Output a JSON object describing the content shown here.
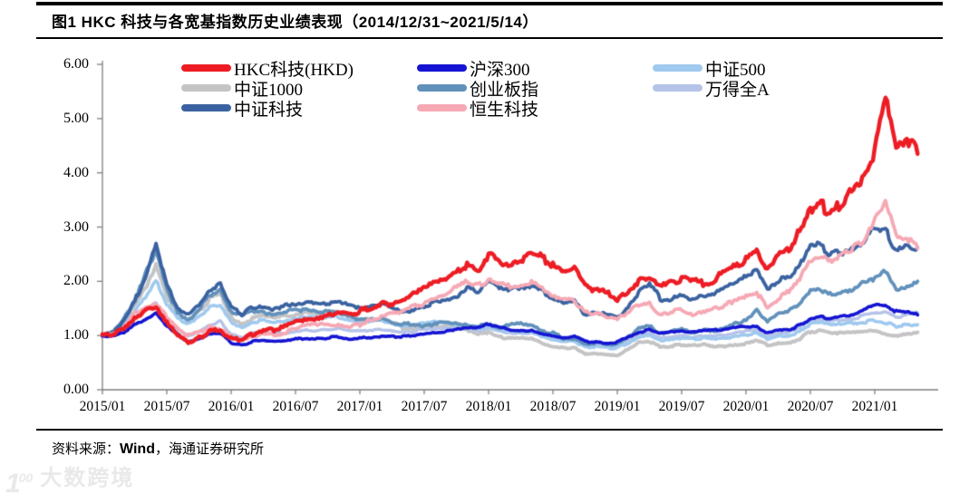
{
  "header": {
    "title": "图1  HKC 科技与各宽基指数历史业绩表现（2014/12/31~2021/5/14）"
  },
  "footer": {
    "source_label": "资料来源：",
    "source_wind": "Wind",
    "source_rest": "，海通证券研究所"
  },
  "watermark": {
    "mark_digit": "1",
    "mark_sup": "00",
    "text": "大数跨境"
  },
  "chart_data": {
    "type": "line",
    "title": "HKC 科技与各宽基指数历史业绩表现",
    "period": "2014/12/31~2021/5/14",
    "xlabel": "",
    "ylabel": "",
    "ylim": [
      0,
      6
    ],
    "grid": false,
    "legend_position": "top-inside",
    "y_tick_labels": [
      "0.00",
      "1.00",
      "2.00",
      "3.00",
      "4.00",
      "5.00",
      "6.00"
    ],
    "x_tick_labels": [
      "2015/01",
      "2015/07",
      "2016/01",
      "2016/07",
      "2017/01",
      "2017/07",
      "2018/01",
      "2018/07",
      "2019/01",
      "2019/07",
      "2020/01",
      "2020/07",
      "2021/01"
    ],
    "x_months": {
      "start": "2015/01",
      "end": "2021/05",
      "count": 77,
      "note": "monthly values, all indices normalized to 1.00 at 2014/12/31"
    },
    "series": [
      {
        "name": "HKC科技(HKD)",
        "color": "#ed1c24",
        "values": [
          1.0,
          1.02,
          1.12,
          1.3,
          1.45,
          1.5,
          1.22,
          1.0,
          0.88,
          0.95,
          1.08,
          1.1,
          0.94,
          0.92,
          1.03,
          1.1,
          1.1,
          1.18,
          1.26,
          1.33,
          1.33,
          1.37,
          1.44,
          1.4,
          1.44,
          1.52,
          1.58,
          1.6,
          1.66,
          1.78,
          1.88,
          1.98,
          2.05,
          2.18,
          2.32,
          2.22,
          2.48,
          2.4,
          2.32,
          2.38,
          2.5,
          2.45,
          2.28,
          2.18,
          2.22,
          1.92,
          1.85,
          1.78,
          1.62,
          1.85,
          2.0,
          2.1,
          1.88,
          1.95,
          2.05,
          1.98,
          1.95,
          2.05,
          2.15,
          2.28,
          2.4,
          2.55,
          2.18,
          2.45,
          2.62,
          2.9,
          3.35,
          3.4,
          3.25,
          3.5,
          3.7,
          3.95,
          4.4,
          5.4,
          4.55,
          4.7,
          4.35
        ]
      },
      {
        "name": "沪深300",
        "color": "#1414d2",
        "values": [
          1.0,
          0.99,
          1.05,
          1.22,
          1.3,
          1.42,
          1.18,
          1.02,
          0.88,
          0.93,
          1.02,
          1.05,
          0.86,
          0.82,
          0.89,
          0.91,
          0.89,
          0.9,
          0.93,
          0.95,
          0.94,
          0.96,
          0.98,
          0.94,
          0.95,
          0.97,
          0.98,
          0.98,
          0.98,
          1.01,
          1.04,
          1.06,
          1.07,
          1.11,
          1.14,
          1.14,
          1.22,
          1.15,
          1.1,
          1.08,
          1.1,
          1.04,
          0.99,
          0.96,
          0.99,
          0.89,
          0.88,
          0.85,
          0.88,
          0.98,
          1.06,
          1.1,
          1.03,
          1.06,
          1.09,
          1.06,
          1.09,
          1.1,
          1.11,
          1.15,
          1.17,
          1.16,
          1.04,
          1.09,
          1.11,
          1.19,
          1.31,
          1.34,
          1.31,
          1.34,
          1.39,
          1.47,
          1.55,
          1.58,
          1.44,
          1.42,
          1.38
        ]
      },
      {
        "name": "中证500",
        "color": "#9fc9ee",
        "values": [
          1.0,
          1.03,
          1.18,
          1.45,
          1.7,
          2.02,
          1.58,
          1.32,
          1.22,
          1.33,
          1.52,
          1.58,
          1.26,
          1.14,
          1.25,
          1.28,
          1.24,
          1.27,
          1.3,
          1.33,
          1.32,
          1.33,
          1.35,
          1.27,
          1.24,
          1.26,
          1.28,
          1.24,
          1.17,
          1.19,
          1.22,
          1.24,
          1.23,
          1.21,
          1.19,
          1.14,
          1.17,
          1.1,
          1.08,
          1.05,
          1.06,
          0.99,
          0.92,
          0.89,
          0.91,
          0.78,
          0.8,
          0.77,
          0.77,
          0.87,
          0.98,
          1.0,
          0.91,
          0.93,
          0.95,
          0.93,
          0.95,
          0.94,
          0.94,
          0.98,
          1.0,
          1.05,
          0.93,
          0.98,
          1.0,
          1.07,
          1.21,
          1.24,
          1.19,
          1.21,
          1.23,
          1.25,
          1.27,
          1.24,
          1.17,
          1.19,
          1.2
        ]
      },
      {
        "name": "中证1000",
        "color": "#c4c4c6",
        "values": [
          1.0,
          1.05,
          1.25,
          1.55,
          1.85,
          2.3,
          1.72,
          1.4,
          1.28,
          1.43,
          1.68,
          1.76,
          1.36,
          1.2,
          1.33,
          1.37,
          1.33,
          1.36,
          1.39,
          1.42,
          1.41,
          1.42,
          1.44,
          1.33,
          1.29,
          1.3,
          1.31,
          1.24,
          1.14,
          1.14,
          1.17,
          1.19,
          1.17,
          1.14,
          1.09,
          1.04,
          1.05,
          0.97,
          0.97,
          0.94,
          0.95,
          0.87,
          0.79,
          0.77,
          0.79,
          0.65,
          0.67,
          0.65,
          0.64,
          0.74,
          0.87,
          0.89,
          0.79,
          0.81,
          0.83,
          0.81,
          0.83,
          0.81,
          0.8,
          0.84,
          0.86,
          0.92,
          0.82,
          0.86,
          0.88,
          0.94,
          1.07,
          1.09,
          1.04,
          1.04,
          1.05,
          1.06,
          1.08,
          1.04,
          0.99,
          1.03,
          1.06
        ]
      },
      {
        "name": "创业板指",
        "color": "#6191bb",
        "values": [
          1.0,
          1.08,
          1.32,
          1.65,
          2.15,
          2.6,
          1.9,
          1.42,
          1.3,
          1.48,
          1.75,
          1.85,
          1.44,
          1.36,
          1.45,
          1.42,
          1.38,
          1.44,
          1.47,
          1.45,
          1.44,
          1.44,
          1.42,
          1.33,
          1.28,
          1.3,
          1.32,
          1.25,
          1.2,
          1.22,
          1.16,
          1.24,
          1.25,
          1.22,
          1.2,
          1.17,
          1.21,
          1.14,
          1.24,
          1.21,
          1.19,
          1.09,
          1.04,
          0.94,
          0.95,
          0.84,
          0.87,
          0.85,
          0.84,
          0.95,
          1.14,
          1.17,
          1.04,
          1.07,
          1.1,
          1.07,
          1.11,
          1.1,
          1.12,
          1.22,
          1.3,
          1.45,
          1.28,
          1.4,
          1.45,
          1.6,
          1.85,
          1.8,
          1.74,
          1.79,
          1.84,
          2.0,
          2.05,
          2.16,
          1.82,
          1.9,
          2.0
        ]
      },
      {
        "name": "万得全A",
        "color": "#b5c3e8",
        "values": [
          1.0,
          1.02,
          1.12,
          1.32,
          1.5,
          1.6,
          1.33,
          1.13,
          1.0,
          1.07,
          1.2,
          1.26,
          1.02,
          0.96,
          1.04,
          1.06,
          1.04,
          1.05,
          1.08,
          1.1,
          1.09,
          1.11,
          1.14,
          1.09,
          1.08,
          1.1,
          1.11,
          1.09,
          1.05,
          1.08,
          1.11,
          1.14,
          1.13,
          1.14,
          1.13,
          1.1,
          1.13,
          1.08,
          1.06,
          1.04,
          1.05,
          0.99,
          0.93,
          0.91,
          0.93,
          0.82,
          0.83,
          0.81,
          0.81,
          0.91,
          1.01,
          1.04,
          0.95,
          0.98,
          1.0,
          0.98,
          1.0,
          1.0,
          1.01,
          1.06,
          1.08,
          1.11,
          0.99,
          1.04,
          1.06,
          1.14,
          1.29,
          1.31,
          1.27,
          1.29,
          1.32,
          1.37,
          1.41,
          1.44,
          1.34,
          1.37,
          1.42
        ]
      },
      {
        "name": "中证科技",
        "color": "#3a62a0",
        "values": [
          1.0,
          1.06,
          1.28,
          1.62,
          2.12,
          2.68,
          1.98,
          1.5,
          1.38,
          1.55,
          1.85,
          1.95,
          1.52,
          1.4,
          1.52,
          1.55,
          1.5,
          1.54,
          1.58,
          1.62,
          1.6,
          1.6,
          1.64,
          1.54,
          1.5,
          1.54,
          1.59,
          1.51,
          1.44,
          1.49,
          1.54,
          1.62,
          1.68,
          1.74,
          1.88,
          1.78,
          1.98,
          1.88,
          1.84,
          1.89,
          1.94,
          1.84,
          1.69,
          1.59,
          1.64,
          1.39,
          1.44,
          1.39,
          1.34,
          1.55,
          1.8,
          1.94,
          1.69,
          1.64,
          1.74,
          1.69,
          1.74,
          1.79,
          1.89,
          1.99,
          2.1,
          2.2,
          1.88,
          2.04,
          2.1,
          2.28,
          2.72,
          2.62,
          2.48,
          2.54,
          2.6,
          2.74,
          2.98,
          2.92,
          2.58,
          2.7,
          2.62
        ]
      },
      {
        "name": "恒生科技",
        "color": "#f6a8b4",
        "values": [
          1.0,
          1.03,
          1.15,
          1.4,
          1.52,
          1.56,
          1.34,
          1.14,
          1.0,
          1.06,
          1.15,
          1.12,
          0.96,
          0.9,
          0.98,
          1.02,
          1.0,
          1.05,
          1.12,
          1.18,
          1.2,
          1.22,
          1.2,
          1.15,
          1.2,
          1.28,
          1.34,
          1.4,
          1.45,
          1.54,
          1.6,
          1.7,
          1.74,
          1.88,
          1.98,
          1.94,
          2.0,
          1.94,
          1.89,
          1.92,
          1.99,
          1.89,
          1.75,
          1.69,
          1.64,
          1.44,
          1.4,
          1.34,
          1.29,
          1.44,
          1.54,
          1.59,
          1.39,
          1.44,
          1.49,
          1.39,
          1.44,
          1.49,
          1.54,
          1.69,
          1.74,
          1.79,
          1.49,
          1.69,
          1.79,
          2.04,
          2.38,
          2.48,
          2.38,
          2.54,
          2.58,
          2.78,
          3.08,
          3.44,
          2.88,
          2.78,
          2.6
        ]
      }
    ],
    "legend_grid": [
      [
        "HKC科技(HKD)",
        "沪深300",
        "中证500"
      ],
      [
        "中证1000",
        "创业板指",
        "万得全A"
      ],
      [
        "中证科技",
        "恒生科技"
      ]
    ]
  }
}
